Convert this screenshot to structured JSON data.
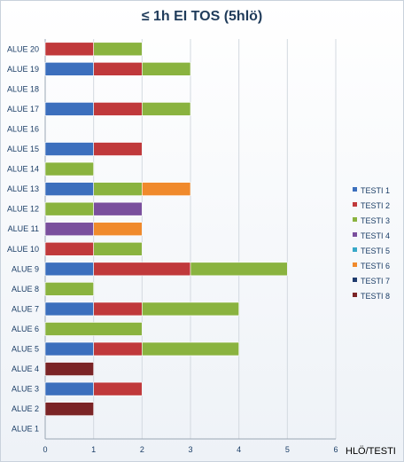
{
  "chart_data": {
    "type": "bar",
    "orientation": "horizontal",
    "stacked": true,
    "title": "≤ 1h EI TOS (5hlö)",
    "xlabel": "HLÖ/TESTI",
    "xlim": [
      0,
      6
    ],
    "xticks": [
      "0",
      "1",
      "2",
      "3",
      "4",
      "5",
      "6"
    ],
    "grid": true,
    "legend_position": "right",
    "categories": [
      "ALUE 20",
      "ALUE 19",
      "ALUE 18",
      "ALUE 17",
      "ALUE 16",
      "ALUE 15",
      "ALUE 14",
      "ALUE 13",
      "ALUE 12",
      "ALUE 11",
      "ALUE 10",
      "ALUE 9",
      "ALUE 8",
      "ALUE 7",
      "ALUE 6",
      "ALUE 5",
      "ALUE 4",
      "ALUE 3",
      "ALUE 2",
      "ALUE 1"
    ],
    "series": [
      {
        "name": "TESTI 1",
        "color": "#3c6fbd",
        "values": [
          0,
          1,
          0,
          1,
          0,
          1,
          0,
          1,
          0,
          0,
          0,
          1,
          0,
          1,
          0,
          1,
          0,
          1,
          0,
          0
        ]
      },
      {
        "name": "TESTI 2",
        "color": "#c0393b",
        "values": [
          1,
          1,
          0,
          1,
          0,
          1,
          0,
          0,
          0,
          0,
          1,
          2,
          0,
          1,
          0,
          1,
          0,
          1,
          0,
          0
        ]
      },
      {
        "name": "TESTI 3",
        "color": "#8ab33f",
        "values": [
          1,
          1,
          0,
          1,
          0,
          0,
          1,
          1,
          1,
          0,
          1,
          2,
          1,
          2,
          2,
          2,
          0,
          0,
          0,
          0
        ]
      },
      {
        "name": "TESTI 4",
        "color": "#7a4f9d",
        "values": [
          0,
          0,
          0,
          0,
          0,
          0,
          0,
          0,
          1,
          1,
          0,
          0,
          0,
          0,
          0,
          0,
          0,
          0,
          0,
          0
        ]
      },
      {
        "name": "TESTI 5",
        "color": "#38a8c8",
        "values": [
          0,
          0,
          0,
          0,
          0,
          0,
          0,
          0,
          0,
          0,
          0,
          0,
          0,
          0,
          0,
          0,
          0,
          0,
          0,
          0
        ]
      },
      {
        "name": "TESTI 6",
        "color": "#f08a2c",
        "values": [
          0,
          0,
          0,
          0,
          0,
          0,
          0,
          1,
          0,
          1,
          0,
          0,
          0,
          0,
          0,
          0,
          0,
          0,
          0,
          0
        ]
      },
      {
        "name": "TESTI 7",
        "color": "#1f3b6d",
        "values": [
          0,
          0,
          0,
          0,
          0,
          0,
          0,
          0,
          0,
          0,
          0,
          0,
          0,
          0,
          0,
          0,
          0,
          0,
          0,
          0
        ]
      },
      {
        "name": "TESTI 8",
        "color": "#7b2426",
        "values": [
          0,
          0,
          0,
          0,
          0,
          0,
          0,
          0,
          0,
          0,
          0,
          0,
          0,
          0,
          0,
          0,
          1,
          0,
          1,
          0
        ]
      }
    ]
  }
}
